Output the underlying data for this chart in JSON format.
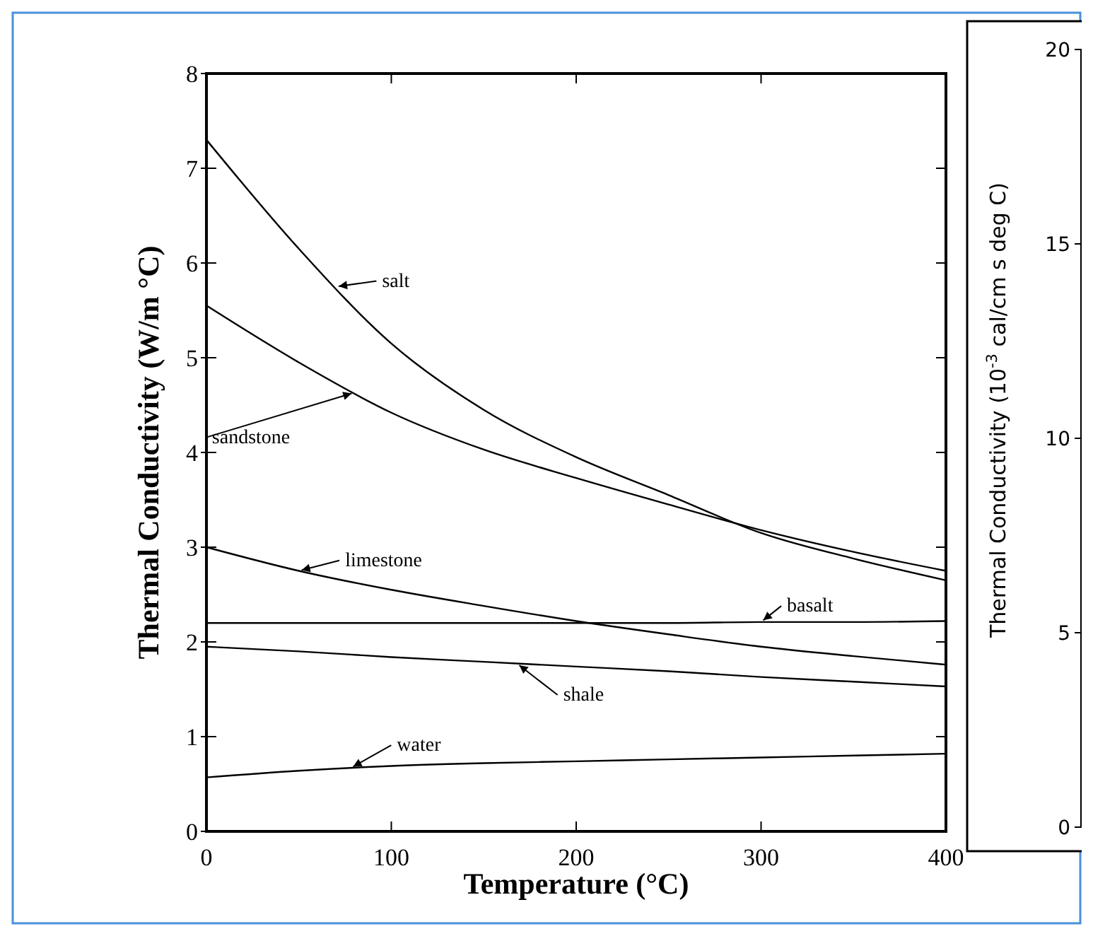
{
  "chart_data": {
    "type": "line",
    "xlabel": "Temperature (°C)",
    "ylabel": "Thermal Conductivity (W/m °C)",
    "y2label": "Thermal Conductivity  (10$^{-3}$ cal/cm s deg C)",
    "x": [
      0,
      50,
      100,
      150,
      200,
      250,
      300,
      350,
      400
    ],
    "series": [
      {
        "name": "salt",
        "color": "#000000",
        "values": [
          7.3,
          6.15,
          5.15,
          4.45,
          3.95,
          3.55,
          3.15,
          2.88,
          2.65
        ]
      },
      {
        "name": "sandstone",
        "color": "#000000",
        "values": [
          5.55,
          4.95,
          4.42,
          4.03,
          3.73,
          3.45,
          3.18,
          2.95,
          2.75
        ]
      },
      {
        "name": "limestone",
        "color": "#000000",
        "values": [
          3.0,
          2.75,
          2.55,
          2.38,
          2.22,
          2.08,
          1.95,
          1.85,
          1.76
        ]
      },
      {
        "name": "basalt",
        "color": "#000000",
        "values": [
          2.2,
          2.2,
          2.2,
          2.2,
          2.2,
          2.2,
          2.21,
          2.21,
          2.22
        ]
      },
      {
        "name": "shale",
        "color": "#000000",
        "values": [
          1.95,
          1.9,
          1.84,
          1.79,
          1.74,
          1.69,
          1.63,
          1.58,
          1.53
        ]
      },
      {
        "name": "water",
        "color": "#000000",
        "values": [
          0.57,
          0.64,
          0.69,
          0.72,
          0.74,
          0.76,
          0.78,
          0.8,
          0.82
        ]
      }
    ],
    "xlim": [
      0,
      400
    ],
    "xticks": [
      0,
      100,
      200,
      300,
      400
    ],
    "ylim": [
      0,
      8
    ],
    "yticks": [
      0,
      1,
      2,
      3,
      4,
      5,
      6,
      7,
      8
    ],
    "y2lim": [
      0,
      20
    ],
    "y2ticks": [
      0,
      5,
      10,
      15,
      20
    ],
    "legend": "center",
    "grid": false,
    "marker": "none",
    "line_style": "solid"
  }
}
